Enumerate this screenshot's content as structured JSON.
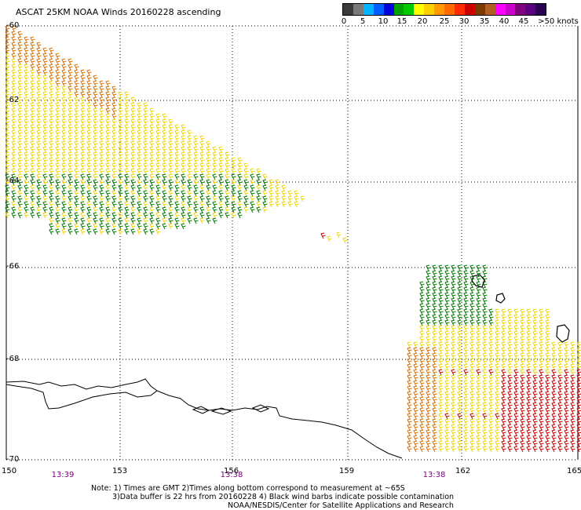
{
  "title": "ASCAT 25KM NOAA Winds 20160228 ascending",
  "legend": {
    "colors": [
      "#3a3a3a",
      "#7a7a7a",
      "#00b4ff",
      "#0060ff",
      "#0000dd",
      "#00a000",
      "#00cc00",
      "#ffff00",
      "#ffd000",
      "#ff9a00",
      "#ff6a00",
      "#ff2a00",
      "#cc0000",
      "#7a3a00",
      "#b06020",
      "#ff00ff",
      "#cc00cc",
      "#800080",
      "#5a0080",
      "#2a0050"
    ],
    "labels": [
      "0",
      "5",
      "10",
      "15",
      "20",
      "25",
      "30",
      "35",
      "40",
      "45",
      ">50 knots"
    ]
  },
  "lat_labels": [
    "-60",
    "-62",
    "-64",
    "-66",
    "-68",
    "-70"
  ],
  "lon_labels": [
    "150",
    "153",
    "156",
    "159",
    "162",
    "165"
  ],
  "times": [
    "13:39",
    "13:38",
    "13:38"
  ],
  "notes": [
    "Note: 1) Times are GMT 2)Times along bottom correspond to measurement at ~65S",
    "3)Data buffer is 22 hrs from 20160228 4) Black wind barbs indicate possible contamination",
    "NOAA/NESDIS/Center for Satellite Applications and Research"
  ],
  "colors": {
    "orange": "#e07000",
    "yellow": "#f0d800",
    "green": "#008000",
    "red": "#d00000",
    "coast": "#000000",
    "grid": "#000000"
  }
}
